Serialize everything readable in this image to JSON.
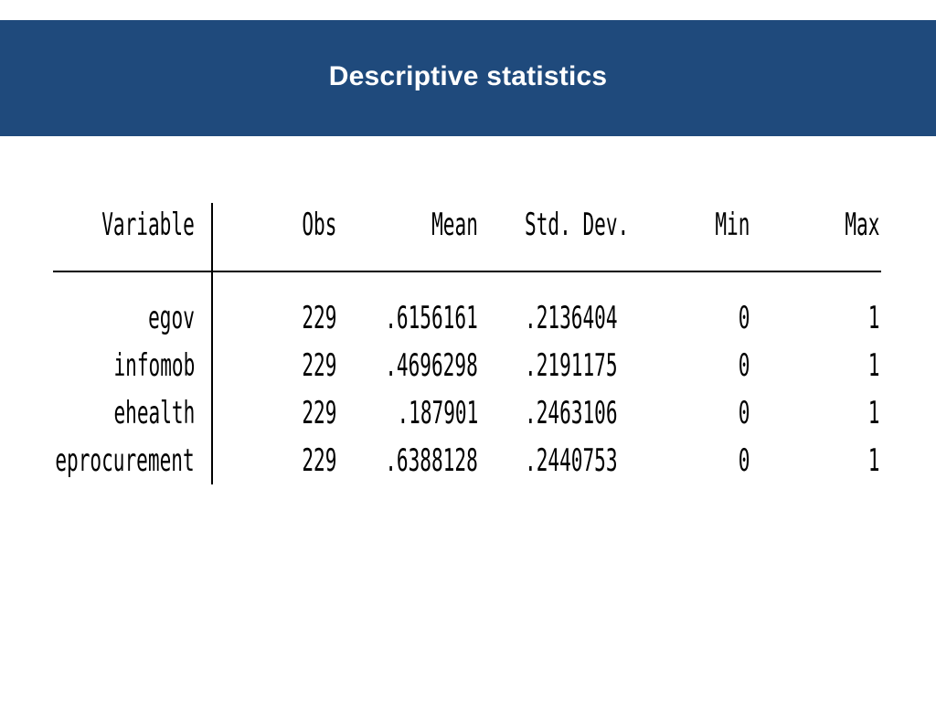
{
  "slide": {
    "title": "Descriptive statistics"
  },
  "table": {
    "headers": {
      "variable": "Variable",
      "obs": "Obs",
      "mean": "Mean",
      "std_dev": "Std. Dev.",
      "min": "Min",
      "max": "Max"
    },
    "rows": [
      {
        "variable": "egov",
        "obs": "229",
        "mean": ".6156161",
        "std_dev": ".2136404",
        "min": "0",
        "max": "1"
      },
      {
        "variable": "infomob",
        "obs": "229",
        "mean": ".4696298",
        "std_dev": ".2191175",
        "min": "0",
        "max": "1"
      },
      {
        "variable": "ehealth",
        "obs": "229",
        "mean": ".187901",
        "std_dev": ".2463106",
        "min": "0",
        "max": "1"
      },
      {
        "variable": "eprocurement",
        "obs": "229",
        "mean": ".6388128",
        "std_dev": ".2440753",
        "min": "0",
        "max": "1"
      }
    ]
  }
}
